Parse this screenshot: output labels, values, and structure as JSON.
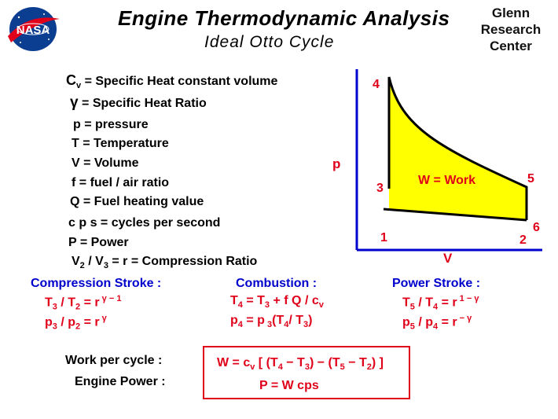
{
  "header": {
    "title": "Engine  Thermodynamic  Analysis",
    "subtitle": "Ideal  Otto  Cycle",
    "logo_text": "NASA",
    "center_name": [
      "Glenn",
      "Research",
      "Center"
    ]
  },
  "definitions": {
    "cv_sym": "C",
    "cv_sub": "v",
    "cv_text": " =  Specific Heat  constant  volume",
    "gamma_sym": "γ",
    "gamma_text": " = Specific  Heat  Ratio",
    "p_text": "p =  pressure",
    "T_text": "T =  Temperature",
    "V_text": "V =  Volume",
    "f_text": "f  =  fuel / air  ratio",
    "Q_text": "Q =  Fuel  heating  value",
    "cps_text": "c p s =  cycles  per  second",
    "P_text": "P =  Power",
    "ratio_a": "V",
    "ratio_a_sub": "2",
    "ratio_mid": " / V",
    "ratio_b_sub": "3",
    "ratio_r": " =  r  =",
    "ratio_text": "Compression  Ratio"
  },
  "diagram": {
    "points": {
      "p1": "1",
      "p2": "2",
      "p3": "3",
      "p4": "4",
      "p5": "5",
      "p6": "6"
    },
    "work_label": "W = Work",
    "y_axis": "p",
    "x_axis": "V"
  },
  "strokes": {
    "compression": {
      "heading": "Compression  Stroke :",
      "l1_a": "T",
      "l1_a_sub": "3",
      "l1_b": " / T",
      "l1_b_sub": "2",
      "l1_c": " = r",
      "l1_exp": " γ − 1",
      "l2_a": "p",
      "l2_a_sub": "3",
      "l2_b": " / p",
      "l2_b_sub": "2",
      "l2_c": " = r",
      "l2_exp": " γ"
    },
    "combustion": {
      "heading": "Combustion :",
      "l1_a": "T",
      "l1_a_sub": "4",
      "l1_b": " =  T",
      "l1_b_sub": "3",
      "l1_c": " + f Q / c",
      "l1_c_sub": "v",
      "l2_a": "p",
      "l2_a_sub": "4",
      "l2_b": " =  p",
      "l2_b_sub": " 3",
      "l2_c": "(T",
      "l2_c_sub": "4",
      "l2_d": "/ T",
      "l2_d_sub": "3",
      "l2_e": ")"
    },
    "power": {
      "heading": "Power  Stroke :",
      "l1_a": "T",
      "l1_a_sub": "5",
      "l1_b": " / T",
      "l1_b_sub": "4",
      "l1_c": " = r",
      "l1_exp": "  1 − γ",
      "l2_a": "p",
      "l2_a_sub": "5",
      "l2_b": " / p",
      "l2_b_sub": "4",
      "l2_c": " =  r",
      "l2_exp": " − γ"
    }
  },
  "results": {
    "work_label": "Work  per  cycle :",
    "power_label": "Engine  Power :",
    "w_a": "W = c",
    "w_a_sub": "v",
    "w_b": " [ (T",
    "w_b_sub": "4",
    "w_c": " − T",
    "w_c_sub": "3",
    "w_d": ") − (T",
    "w_d_sub": "5",
    "w_e": " − T",
    "w_e_sub": "2",
    "w_f": ") ]",
    "p_eq": "P  =  W  cps"
  },
  "colors": {
    "fill": "#ffff00",
    "accent_red": "#e0001a",
    "accent_blue": "#0000cc",
    "logo_blue": "#0b3d91"
  }
}
